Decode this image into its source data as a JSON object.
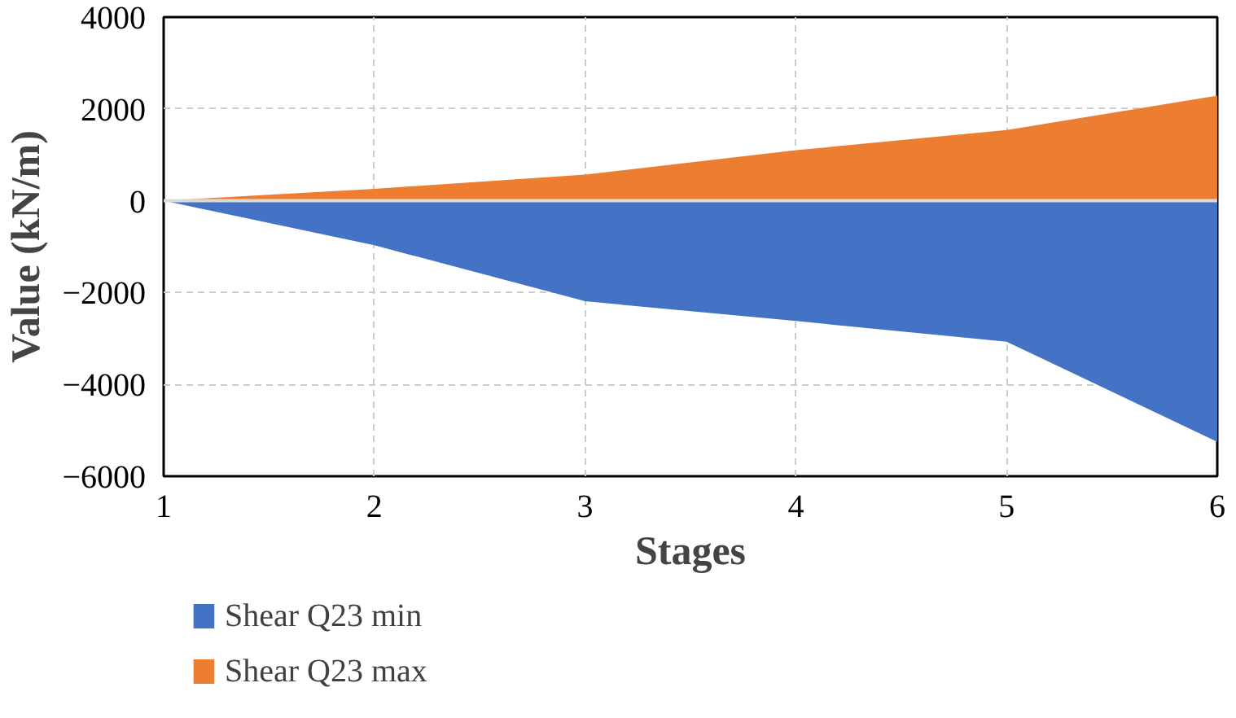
{
  "chart_data": {
    "type": "area",
    "xlabel": "Stages",
    "ylabel": "Value (kN/m)",
    "x": [
      1,
      2,
      3,
      4,
      5,
      6
    ],
    "xlim": [
      1,
      6
    ],
    "xticks": [
      1,
      2,
      3,
      4,
      5,
      6
    ],
    "ylim": [
      -6000,
      4000
    ],
    "yticks": [
      -6000,
      -4000,
      -2000,
      0,
      2000,
      4000
    ],
    "grid": true,
    "legend": "bottom",
    "series": [
      {
        "name": "Shear Q23 min",
        "color": "#4472c4",
        "values": [
          0,
          -970,
          -2190,
          -2620,
          -3070,
          -5250
        ]
      },
      {
        "name": "Shear Q23 max",
        "color": "#ed7d31",
        "values": [
          0,
          260,
          570,
          1100,
          1540,
          2290
        ]
      }
    ]
  }
}
